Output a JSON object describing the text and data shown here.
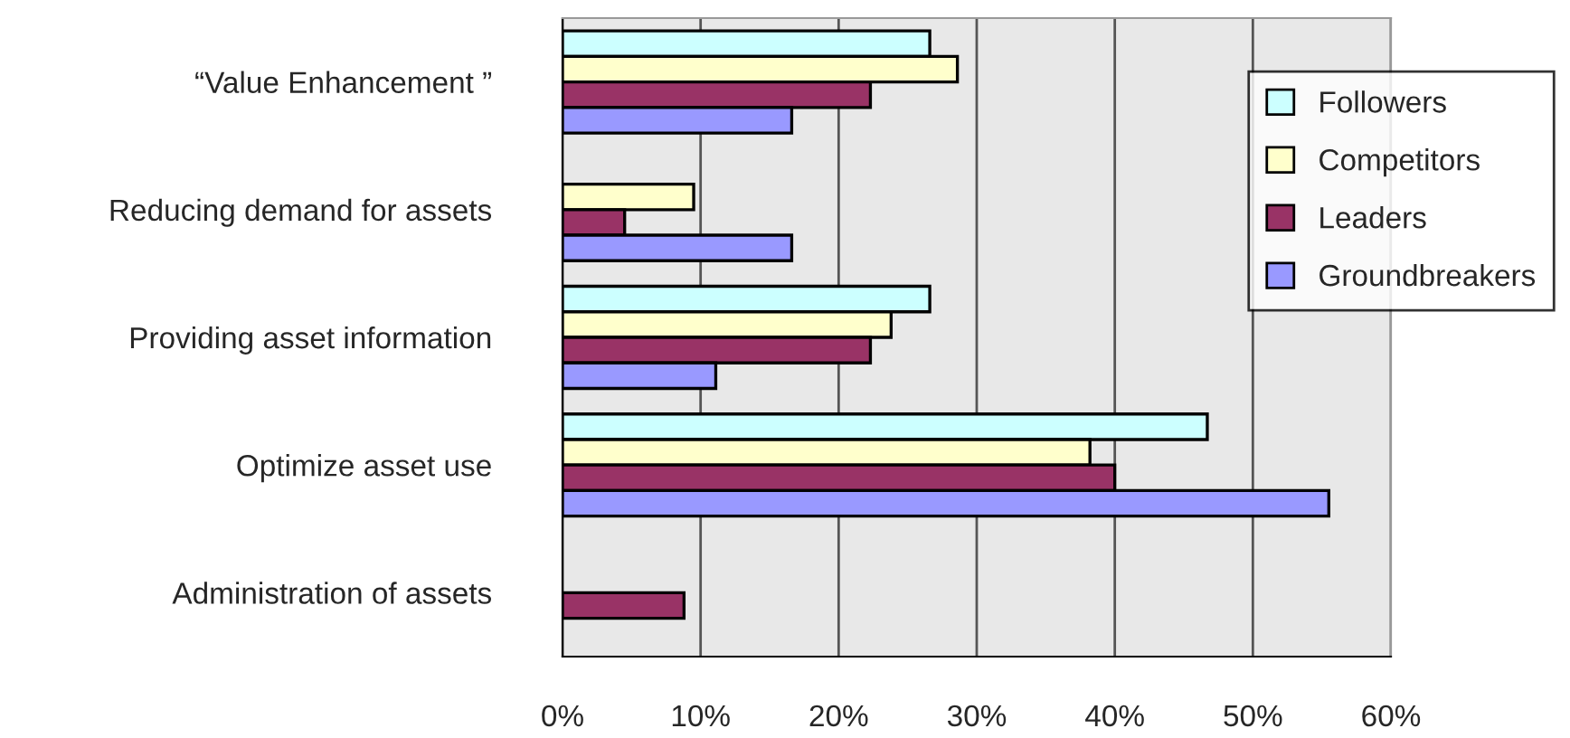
{
  "chart_data": {
    "type": "bar",
    "orientation": "horizontal",
    "categories": [
      "“Value Enhancement ”",
      "Reducing demand for assets",
      "Providing asset information",
      "Optimize asset use",
      "Administration of assets"
    ],
    "series": [
      {
        "name": "Followers",
        "color": "#ccffff",
        "values": [
          26.6,
          null,
          26.6,
          46.7,
          null
        ]
      },
      {
        "name": "Competitors",
        "color": "#ffffcc",
        "values": [
          28.6,
          9.5,
          23.8,
          38.2,
          null
        ]
      },
      {
        "name": "Leaders",
        "color": "#993366",
        "values": [
          22.3,
          4.5,
          22.3,
          40.0,
          8.8
        ]
      },
      {
        "name": "Groundbreakers",
        "color": "#9999ff",
        "values": [
          16.6,
          16.6,
          11.1,
          55.5,
          null
        ]
      }
    ],
    "xlim": [
      0,
      60
    ],
    "xticks": [
      {
        "value": 0,
        "label": "0%"
      },
      {
        "value": 10,
        "label": "10%"
      },
      {
        "value": 20,
        "label": "20%"
      },
      {
        "value": 30,
        "label": "30%"
      },
      {
        "value": 40,
        "label": "40%"
      },
      {
        "value": 50,
        "label": "50%"
      },
      {
        "value": 60,
        "label": "60%"
      }
    ],
    "grid": "x",
    "legend": "top right"
  }
}
